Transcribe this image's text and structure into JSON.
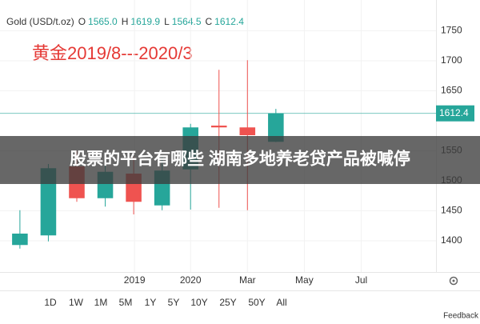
{
  "header": {
    "symbol": "Gold (USD/t.oz)",
    "fields": [
      {
        "key": "O",
        "label": "1565.0"
      },
      {
        "key": "H",
        "label": "1619.9"
      },
      {
        "key": "L",
        "label": "1564.5"
      },
      {
        "key": "C",
        "label": "1612.4"
      }
    ]
  },
  "chart_data": {
    "type": "candlestick",
    "annotation": "黄金2019/8---2020/3",
    "x": [
      0,
      1,
      2,
      3,
      4,
      5,
      6,
      7,
      8,
      9
    ],
    "open": [
      1393,
      1409,
      1524,
      1471,
      1512,
      1459,
      1519,
      1592,
      1589,
      1565
    ],
    "high": [
      1451,
      1528,
      1550,
      1540,
      1540,
      1540,
      1595,
      1685,
      1701,
      1619.9
    ],
    "low": [
      1387,
      1399,
      1465,
      1457,
      1444,
      1451,
      1452,
      1455,
      1451,
      1564.5
    ],
    "close": [
      1412,
      1521,
      1471,
      1515,
      1465,
      1517,
      1589,
      1589,
      1576,
      1612.4
    ],
    "up_color": "#26a69a",
    "down_color": "#ef5350",
    "price_line": 1612.4,
    "xlim": [
      -0.7,
      14.63
    ],
    "xticks": [
      {
        "value": 4.03,
        "label": "2019"
      },
      {
        "value": 6,
        "label": "2020"
      },
      {
        "value": 8,
        "label": "Mar"
      },
      {
        "value": 10,
        "label": "May"
      },
      {
        "value": 12,
        "label": "Jul"
      }
    ],
    "ylim": [
      1348,
      1788
    ],
    "yticks": [
      1400,
      1450,
      1500,
      1550,
      1650,
      1700,
      1750
    ],
    "grid": true
  },
  "ranges": [
    "1D",
    "1W",
    "1M",
    "5M",
    "1Y",
    "5Y",
    "10Y",
    "25Y",
    "50Y",
    "All"
  ],
  "banner": "股票的平台有哪些 湖南多地养老贷产品被喊停",
  "footer": "Feedback"
}
